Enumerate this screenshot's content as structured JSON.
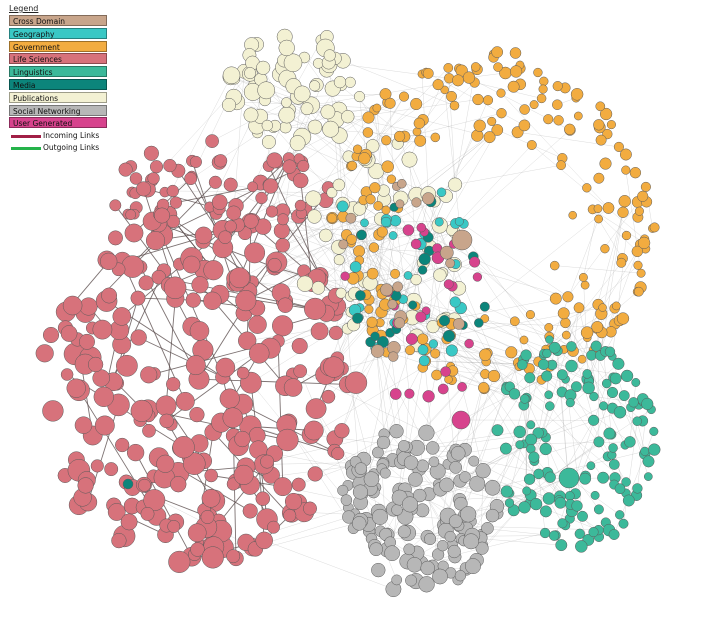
{
  "legend": {
    "title": "Legend",
    "categories": [
      {
        "label": "Cross Domain",
        "color": "#c8a58b"
      },
      {
        "label": "Geography",
        "color": "#39c8c5"
      },
      {
        "label": "Government",
        "color": "#f2ac40"
      },
      {
        "label": "Life Sciences",
        "color": "#d7727b"
      },
      {
        "label": "Linguistics",
        "color": "#3cb99a"
      },
      {
        "label": "Media",
        "color": "#0c857b"
      },
      {
        "label": "Publications",
        "color": "#f3f1d3"
      },
      {
        "label": "Social Networking",
        "color": "#b7b7b7"
      },
      {
        "label": "User Generated",
        "color": "#d7438d"
      }
    ],
    "links": [
      {
        "label": "Incoming Links",
        "color": "#a11f46"
      },
      {
        "label": "Outgoing Links",
        "color": "#25b34a"
      }
    ]
  },
  "clusters": [
    {
      "category": "Life Sciences",
      "shape": "large filled blob, left-center"
    },
    {
      "category": "Government",
      "shape": "dense ring, upper right"
    },
    {
      "category": "Publications",
      "shape": "small cluster, top center"
    },
    {
      "category": "Linguistics",
      "shape": "ring, lower right"
    },
    {
      "category": "Social Networking",
      "shape": "cluster, bottom center"
    },
    {
      "category": "Cross Domain / Geography / Media / User Generated",
      "shape": "mixed core, center"
    }
  ]
}
